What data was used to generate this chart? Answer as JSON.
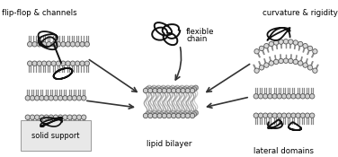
{
  "labels": {
    "top_left": "flip-flop & channels",
    "top_right": "curvature & rigidity",
    "bottom_left": "solid support",
    "bottom_right": "lateral domains",
    "center_top_line1": "flexible",
    "center_top_line2": "chain",
    "center_bottom": "lipid bilayer"
  },
  "figure_width": 3.76,
  "figure_height": 1.75,
  "dpi": 100,
  "bg_color": "#ffffff",
  "text_color": "#000000",
  "membrane_gray": "#888888",
  "membrane_head_light": "#d8d8d8",
  "membrane_head_dark": "#aaaaaa",
  "chain_color": "#111111",
  "chain_gray": "#999999",
  "bilayer_tail_color": "#aaaaaa",
  "support_hatch_color": "#cccccc",
  "font_size": 6.2
}
